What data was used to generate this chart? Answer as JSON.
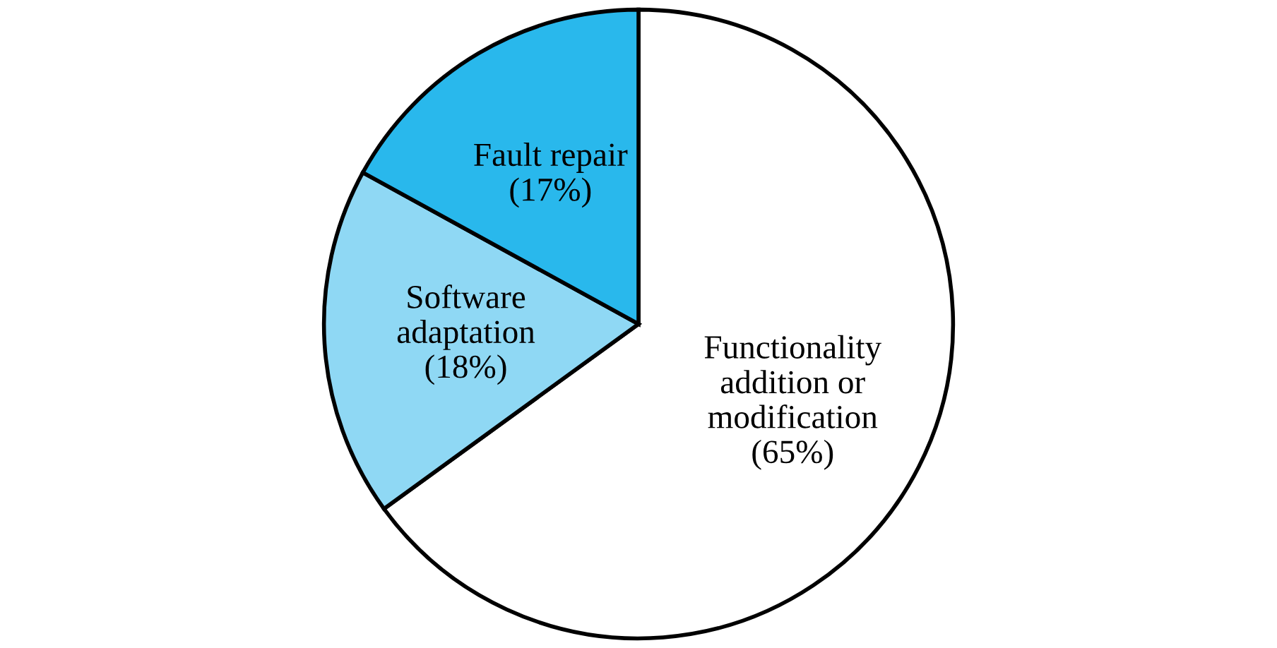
{
  "chart_data": {
    "type": "pie",
    "categories": [
      "Functionality\naddition or\nmodification",
      "Software\nadaptation",
      "Fault repair"
    ],
    "values": [
      65,
      18,
      17
    ],
    "value_labels": [
      "(65%)",
      "(18%)",
      "(17%)"
    ],
    "colors": [
      "#ffffff",
      "#8fd8f4",
      "#29b8ec"
    ]
  }
}
